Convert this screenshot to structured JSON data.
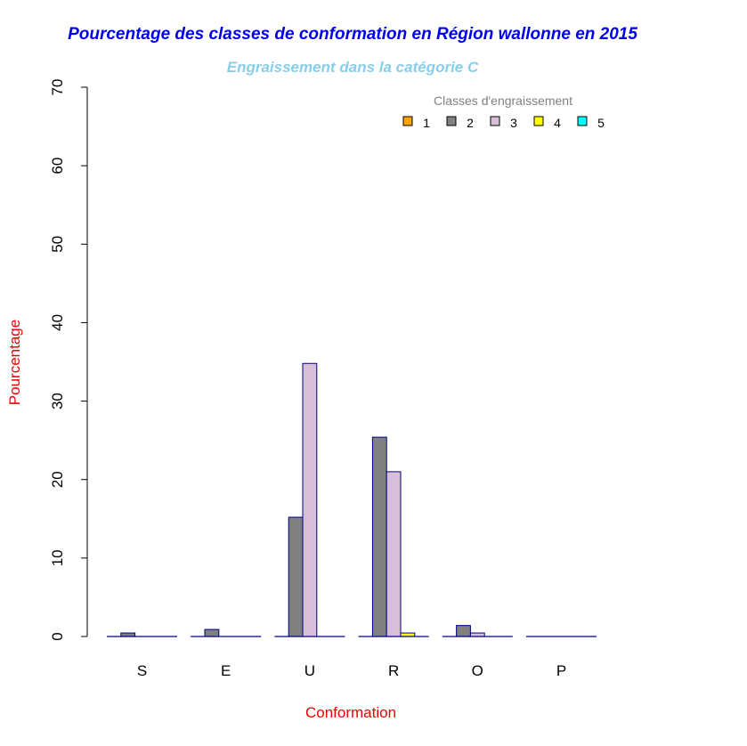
{
  "chart_data": {
    "type": "bar",
    "title": "Pourcentage des classes de conformation en Région wallonne en 2015",
    "subtitle": "Engraissement dans la catégorie C",
    "xlabel": "Conformation",
    "ylabel": "Pourcentage",
    "ylim": [
      0,
      70
    ],
    "yticks": [
      0,
      10,
      20,
      30,
      40,
      50,
      60,
      70
    ],
    "categories": [
      "S",
      "E",
      "U",
      "R",
      "O",
      "P"
    ],
    "legend_title": "Classes d'engraissement",
    "legend_position": "top-right",
    "series": [
      {
        "name": "1",
        "color": "#FFA500",
        "values": [
          0,
          0,
          0,
          0,
          0,
          0
        ]
      },
      {
        "name": "2",
        "color": "#808080",
        "values": [
          0.45,
          0.9,
          15.2,
          25.4,
          1.4,
          0
        ]
      },
      {
        "name": "3",
        "color": "#D8BFD8",
        "values": [
          0,
          0,
          34.8,
          21.0,
          0.45,
          0
        ]
      },
      {
        "name": "4",
        "color": "#FFFF00",
        "values": [
          0,
          0,
          0,
          0.45,
          0,
          0
        ]
      },
      {
        "name": "5",
        "color": "#00FFFF",
        "values": [
          0,
          0,
          0,
          0,
          0,
          0
        ]
      }
    ],
    "colors": {
      "title": "#0000EE",
      "subtitle": "#87CEEB",
      "axis_label": "#EE0000",
      "bar_border": "#000080",
      "legend_title": "#808080"
    }
  }
}
